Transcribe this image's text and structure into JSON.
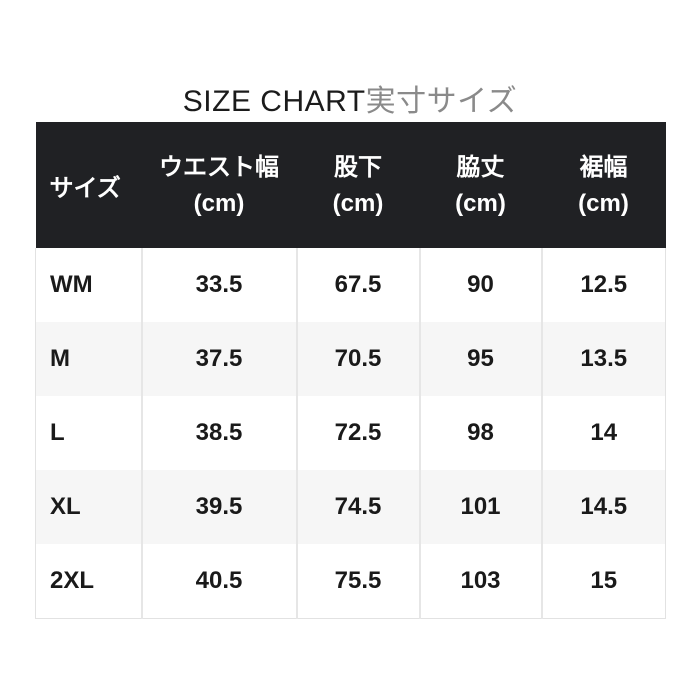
{
  "title": {
    "en": "SIZE CHART",
    "ja": "実寸サイズ"
  },
  "table": {
    "size_header": "サイズ",
    "unit_label": "(cm)",
    "columns": [
      {
        "label": "ウエスト幅",
        "unit": "(cm)"
      },
      {
        "label": "股下",
        "unit": "(cm)"
      },
      {
        "label": "脇丈",
        "unit": "(cm)"
      },
      {
        "label": "裾幅",
        "unit": "(cm)"
      }
    ],
    "rows": [
      {
        "size": "WM",
        "values": [
          "33.5",
          "67.5",
          "90",
          "12.5"
        ]
      },
      {
        "size": "M",
        "values": [
          "37.5",
          "70.5",
          "95",
          "13.5"
        ]
      },
      {
        "size": "L",
        "values": [
          "38.5",
          "72.5",
          "98",
          "14"
        ]
      },
      {
        "size": "XL",
        "values": [
          "39.5",
          "74.5",
          "101",
          "14.5"
        ]
      },
      {
        "size": "2XL",
        "values": [
          "40.5",
          "75.5",
          "103",
          "15"
        ]
      }
    ]
  },
  "colors": {
    "header_bg": "#202124",
    "header_text": "#ffffff",
    "alt_row_bg": "#f6f6f6",
    "row_bg": "#ffffff",
    "border": "#e2e2e2",
    "title_en": "#1b1b1b",
    "title_ja": "#8a8a8a",
    "cell_text": "#1a1a1a"
  }
}
